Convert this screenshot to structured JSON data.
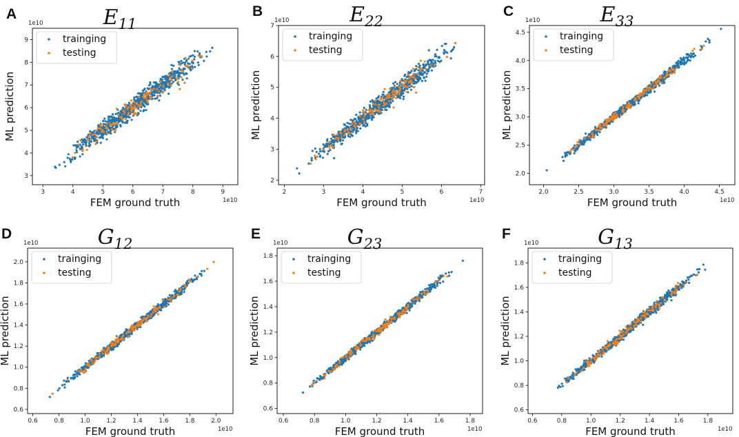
{
  "figure": {
    "marker_size": 1.6,
    "points_per_panel": 900
  },
  "chart_data": [
    {
      "id": "A",
      "letter": "A",
      "title_base": "E",
      "title_sub": "11",
      "type": "scatter",
      "xlabel": "FEM ground truth",
      "ylabel": "ML prediction",
      "exponent": "1e10",
      "xlim": [
        2.65,
        9.5
      ],
      "ylim": [
        2.6,
        9.5
      ],
      "xticks": [
        3,
        4,
        5,
        6,
        7,
        8,
        9
      ],
      "yticks": [
        3,
        4,
        5,
        6,
        7,
        8,
        9
      ],
      "tick_decimals": 0,
      "data_range": [
        2.9,
        9.2
      ],
      "noise": 0.16,
      "series": [
        {
          "name": "trainging",
          "color": "#1f77b4",
          "share": 0.85
        },
        {
          "name": "testing",
          "color": "#ff7f0e",
          "share": 0.15
        }
      ]
    },
    {
      "id": "B",
      "letter": "B",
      "title_base": "E",
      "title_sub": "22",
      "type": "scatter",
      "xlabel": "FEM ground truth",
      "ylabel": "ML prediction",
      "exponent": "1e10",
      "xlim": [
        1.85,
        7.1
      ],
      "ylim": [
        1.85,
        7.0
      ],
      "xticks": [
        2,
        3,
        4,
        5,
        6,
        7
      ],
      "yticks": [
        2,
        3,
        4,
        5,
        6,
        7
      ],
      "tick_decimals": 0,
      "data_range": [
        2.05,
        6.85
      ],
      "noise": 0.11,
      "series": [
        {
          "name": "trainging",
          "color": "#1f77b4",
          "share": 0.85
        },
        {
          "name": "testing",
          "color": "#ff7f0e",
          "share": 0.15
        }
      ]
    },
    {
      "id": "C",
      "letter": "C",
      "title_base": "E",
      "title_sub": "33",
      "type": "scatter",
      "xlabel": "FEM ground truth",
      "ylabel": "ML prediction",
      "exponent": "1e10",
      "xlim": [
        1.8,
        4.72
      ],
      "ylim": [
        1.8,
        4.62
      ],
      "xticks": [
        2.0,
        2.5,
        3.0,
        3.5,
        4.0,
        4.5
      ],
      "yticks": [
        2.0,
        2.5,
        3.0,
        3.5,
        4.0,
        4.5
      ],
      "tick_decimals": 1,
      "data_range": [
        1.9,
        4.6
      ],
      "noise": 0.028,
      "series": [
        {
          "name": "trainging",
          "color": "#1f77b4",
          "share": 0.85
        },
        {
          "name": "testing",
          "color": "#ff7f0e",
          "share": 0.15
        }
      ]
    },
    {
      "id": "D",
      "letter": "D",
      "title_base": "G",
      "title_sub": "12",
      "type": "scatter",
      "xlabel": "FEM ground truth",
      "ylabel": "ML prediction",
      "exponent": "1e10",
      "xlim": [
        0.56,
        2.13
      ],
      "ylim": [
        0.56,
        2.13
      ],
      "xticks": [
        0.6,
        0.8,
        1.0,
        1.2,
        1.4,
        1.6,
        1.8,
        2.0
      ],
      "yticks": [
        0.6,
        0.8,
        1.0,
        1.2,
        1.4,
        1.6,
        1.8,
        2.0
      ],
      "tick_decimals": 1,
      "data_range": [
        0.64,
        2.06
      ],
      "noise": 0.014,
      "series": [
        {
          "name": "trainging",
          "color": "#1f77b4",
          "share": 0.85
        },
        {
          "name": "testing",
          "color": "#ff7f0e",
          "share": 0.15
        }
      ]
    },
    {
      "id": "E",
      "letter": "E",
      "title_base": "G",
      "title_sub": "23",
      "type": "scatter",
      "xlabel": "FEM ground truth",
      "ylabel": "ML prediction",
      "exponent": "1e10",
      "xlim": [
        0.56,
        1.88
      ],
      "ylim": [
        0.56,
        1.86
      ],
      "xticks": [
        0.6,
        0.8,
        1.0,
        1.2,
        1.4,
        1.6,
        1.8
      ],
      "yticks": [
        0.6,
        0.8,
        1.0,
        1.2,
        1.4,
        1.6,
        1.8
      ],
      "tick_decimals": 1,
      "data_range": [
        0.62,
        1.82
      ],
      "noise": 0.011,
      "series": [
        {
          "name": "trainging",
          "color": "#1f77b4",
          "share": 0.85
        },
        {
          "name": "testing",
          "color": "#ff7f0e",
          "share": 0.15
        }
      ]
    },
    {
      "id": "F",
      "letter": "F",
      "title_base": "G",
      "title_sub": "13",
      "type": "scatter",
      "xlabel": "FEM ground truth",
      "ylabel": "ML prediction",
      "exponent": "1e10",
      "xlim": [
        0.57,
        1.97
      ],
      "ylim": [
        0.57,
        1.92
      ],
      "xticks": [
        0.6,
        0.8,
        1.0,
        1.2,
        1.4,
        1.6,
        1.8
      ],
      "yticks": [
        0.6,
        0.8,
        1.0,
        1.2,
        1.4,
        1.6,
        1.8
      ],
      "tick_decimals": 1,
      "data_range": [
        0.63,
        1.88
      ],
      "noise": 0.013,
      "series": [
        {
          "name": "trainging",
          "color": "#1f77b4",
          "share": 0.85
        },
        {
          "name": "testing",
          "color": "#ff7f0e",
          "share": 0.15
        }
      ]
    }
  ]
}
